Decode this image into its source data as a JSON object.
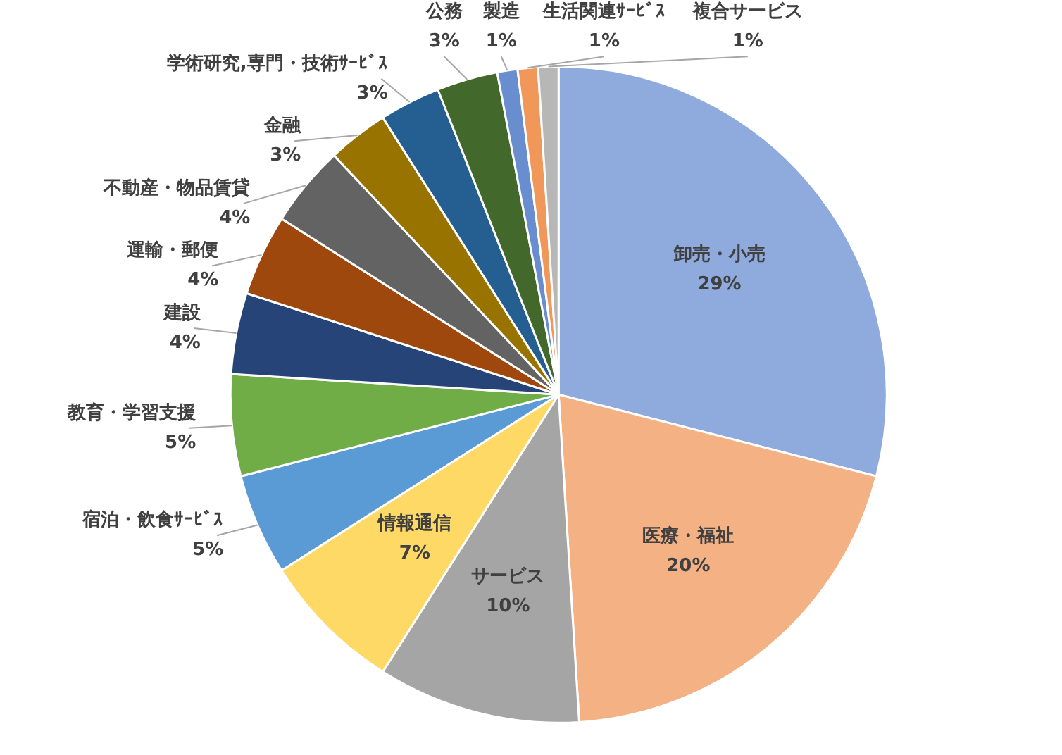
{
  "chart_data": {
    "type": "pie",
    "categories": [
      "卸売・小売",
      "医療・福祉",
      "サービス",
      "情報通信",
      "宿泊・飲食ｻｰﾋﾞｽ",
      "教育・学習支援",
      "建設",
      "運輸・郵便",
      "不動産・物品賃貸",
      "金融",
      "学術研究,専門・技術ｻｰﾋﾞｽ",
      "公務",
      "製造",
      "生活関連ｻｰﾋﾞｽ",
      "複合サービス"
    ],
    "values": [
      29,
      20,
      10,
      7,
      5,
      5,
      4,
      4,
      4,
      3,
      3,
      3,
      1,
      1,
      1
    ],
    "value_labels": [
      "29%",
      "20%",
      "10%",
      "7%",
      "5%",
      "5%",
      "4%",
      "4%",
      "4%",
      "3%",
      "3%",
      "3%",
      "1%",
      "1%",
      "1%"
    ],
    "colors": [
      "#8faadc",
      "#f4b183",
      "#a5a5a5",
      "#ffd966",
      "#5b9bd5",
      "#70ad47",
      "#264478",
      "#9e480e",
      "#636363",
      "#997300",
      "#255e91",
      "#43682b",
      "#698ed0",
      "#f1975a",
      "#b7b7b7"
    ]
  }
}
